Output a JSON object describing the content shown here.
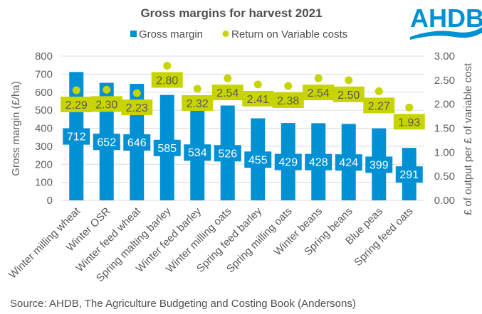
{
  "logo": {
    "text": "AHDB",
    "color": "#0090d4"
  },
  "source": "Source: AHDB, The Agriculture Budgeting and Costing Book (Andersons)",
  "chart_data": {
    "type": "bar",
    "title": "Gross margins for harvest 2021",
    "categories": [
      "Winter milling wheat",
      "Winter OSR",
      "Winter feed wheat",
      "Spring malting barley",
      "Winter feed barley",
      "Winter milling oats",
      "Spring feed barley",
      "Spring milling oats",
      "Winter beans",
      "Spring beans",
      "Blue peas",
      "Spring feed oats"
    ],
    "series": [
      {
        "name": "Gross margin",
        "type": "bar",
        "axis": "left",
        "color": "#0090d4",
        "values": [
          712,
          652,
          646,
          585,
          534,
          526,
          455,
          429,
          428,
          424,
          399,
          291
        ]
      },
      {
        "name": "Return on Variable costs",
        "type": "scatter",
        "axis": "right",
        "color": "#c8d400",
        "values": [
          2.29,
          2.3,
          2.23,
          2.8,
          2.32,
          2.54,
          2.41,
          2.38,
          2.54,
          2.5,
          2.27,
          1.93
        ]
      }
    ],
    "ylabel": "Gross margin (£/ha)",
    "ylim": [
      0,
      800
    ],
    "yticks": [
      "0",
      "100",
      "200",
      "300",
      "400",
      "500",
      "600",
      "700",
      "800"
    ],
    "y2label": "£ of output per £ of variable cost",
    "y2lim": [
      0,
      3
    ],
    "y2ticks": [
      "0.00",
      "0.50",
      "1.00",
      "1.50",
      "2.00",
      "2.50",
      "3.00"
    ],
    "grid": true,
    "legend": "top-center",
    "legend_labels": [
      "Gross margin",
      "Return on Variable costs"
    ]
  }
}
